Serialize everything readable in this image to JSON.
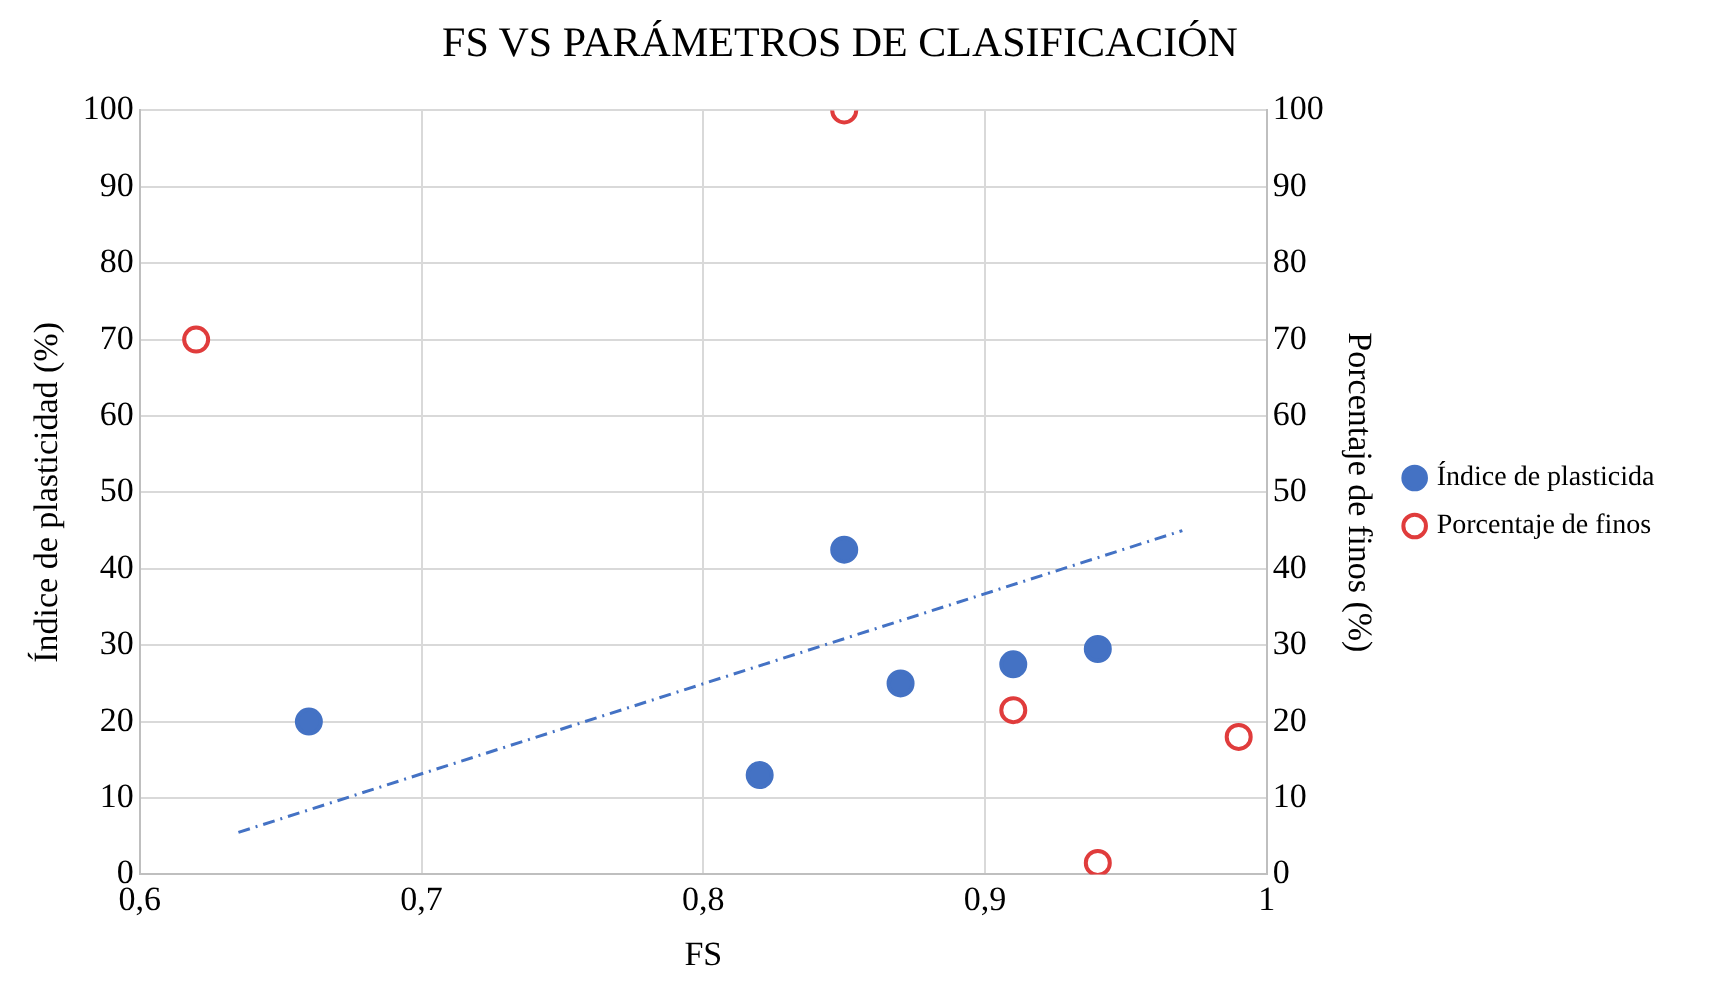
{
  "chart_data": {
    "type": "scatter",
    "title": "FS VS PARÁMETROS DE CLASIFICACIÓN",
    "xlabel": "FS",
    "ylabel": "Índice de plasticidad (%)",
    "y2label": "Porcentaje de finos (%)",
    "series": [
      {
        "name": "Índice de plasticida",
        "color": "#4472c4",
        "x": [
          0.66,
          0.82,
          0.85,
          0.87,
          0.91,
          0.94
        ],
        "values": [
          20,
          13,
          42.5,
          25,
          27.5,
          29.5
        ]
      },
      {
        "name": "Porcentaje de finos",
        "color": "#e03c3c",
        "axis": "y2",
        "x": [
          0.62,
          0.85,
          0.91,
          0.94,
          0.99
        ],
        "values": [
          70,
          100,
          21.5,
          1.5,
          18
        ]
      },
      {
        "type": "line",
        "color": "#4472c4",
        "line_style": "dashed",
        "marker": "none",
        "x": [
          0.635,
          0.97
        ],
        "values": [
          5.5,
          45
        ]
      }
    ],
    "xlim": [
      0.6,
      1
    ],
    "xticks": [
      {
        "value": 0.6,
        "label": "0,6"
      },
      {
        "value": 0.7,
        "label": "0,7"
      },
      {
        "value": 0.8,
        "label": "0,8"
      },
      {
        "value": 0.9,
        "label": "0,9"
      },
      1
    ],
    "ylim": [
      0,
      100
    ],
    "yticks": [
      0,
      10,
      20,
      30,
      40,
      50,
      60,
      70,
      80,
      90,
      100
    ],
    "y2lim": [
      0,
      100
    ],
    "y2ticks": [
      0,
      10,
      20,
      30,
      40,
      50,
      60,
      70,
      80,
      90,
      100
    ],
    "grid": true,
    "legend": "right",
    "marker": "circle"
  }
}
